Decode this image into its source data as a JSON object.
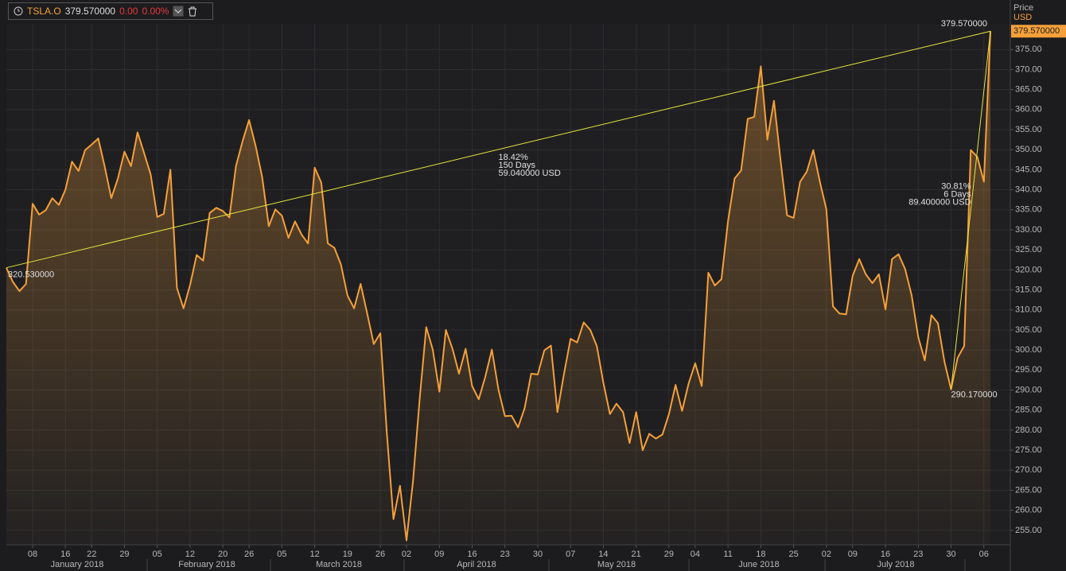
{
  "header": {
    "price": "379.570000",
    "change": "0.00",
    "change_pct": "0.00%"
  },
  "chart_data": {
    "type": "line",
    "y_axis_title": "Price",
    "y_axis_unit": "USD",
    "months": [
      "January 2018",
      "February 2018",
      "March 2018",
      "April 2018",
      "May 2018",
      "June 2018",
      "July 2018"
    ],
    "categories": [
      null,
      null,
      null,
      null,
      "08",
      null,
      null,
      null,
      null,
      "16",
      null,
      null,
      null,
      "22",
      null,
      null,
      null,
      null,
      "29",
      null,
      null,
      null,
      null,
      "05",
      null,
      null,
      null,
      null,
      "12",
      null,
      null,
      null,
      null,
      "20",
      null,
      null,
      null,
      "26",
      null,
      null,
      null,
      null,
      "05",
      null,
      null,
      null,
      null,
      "12",
      null,
      null,
      null,
      null,
      "19",
      null,
      null,
      null,
      null,
      "26",
      null,
      null,
      null,
      "02",
      null,
      null,
      null,
      null,
      "09",
      null,
      null,
      null,
      null,
      "16",
      null,
      null,
      null,
      null,
      "23",
      null,
      null,
      null,
      null,
      "30",
      null,
      null,
      null,
      null,
      "07",
      null,
      null,
      null,
      null,
      "14",
      null,
      null,
      null,
      null,
      "21",
      null,
      null,
      null,
      null,
      "29",
      null,
      null,
      null,
      "04",
      null,
      null,
      null,
      null,
      "11",
      null,
      null,
      null,
      null,
      "18",
      null,
      null,
      null,
      null,
      "25",
      null,
      null,
      null,
      null,
      "02",
      null,
      null,
      null,
      "09",
      null,
      null,
      null,
      null,
      "16",
      null,
      null,
      null,
      null,
      "23",
      null,
      null,
      null,
      null,
      "30",
      null,
      null,
      null,
      null,
      "06",
      null
    ],
    "series": [
      {
        "name": "TSLA.O",
        "color": "#f5a03a",
        "values": [
          320.5,
          317,
          314.7,
          316.5,
          336.5,
          333.8,
          334.9,
          337.9,
          336.2,
          340,
          347,
          344.7,
          349.9,
          351.3,
          352.8,
          345.7,
          337.9,
          342.8,
          349.5,
          345.9,
          354.3,
          349.1,
          343.8,
          333.2,
          334,
          345,
          315.5,
          310.4,
          316.2,
          323.7,
          322.3,
          334.2,
          335.5,
          334.7,
          333.1,
          345.9,
          352.1,
          357.4,
          350.9,
          343.1,
          330.9,
          335.1,
          333.5,
          328,
          332.1,
          328.8,
          326.6,
          345.5,
          341.8,
          326.6,
          325.5,
          321.3,
          313.6,
          310.4,
          316.5,
          309.1,
          301.5,
          304.2,
          279.2,
          257.8,
          266.1,
          252.5,
          267.5,
          287.7,
          305.7,
          300.1,
          289.6,
          305,
          300.3,
          294.1,
          300.3,
          291,
          287.7,
          293.3,
          300.1,
          290.2,
          283.5,
          283.6,
          280.7,
          285.5,
          294.1,
          293.9,
          299.9,
          301.1,
          284.5,
          294.1,
          302.8,
          301.9,
          306.9,
          305,
          301,
          291.9,
          284,
          286.6,
          284.5,
          276.8,
          284.5,
          275,
          279.1,
          277.9,
          278.9,
          284,
          291.3,
          284.8,
          291.7,
          296.7,
          291,
          319.3,
          316.1,
          317.7,
          332.1,
          342.8,
          344.8,
          357.7,
          358.2,
          370.8,
          352.5,
          362.2,
          347.5,
          333.6,
          333,
          342,
          344.5,
          349.9,
          342,
          335.1,
          310.9,
          309.1,
          308.9,
          318.5,
          322.7,
          318.9,
          316.7,
          318.9,
          310.1,
          322.7,
          323.9,
          320.2,
          313.6,
          303.2,
          297.4,
          308.7,
          306.7,
          297,
          290.2,
          298.1,
          301,
          349.9,
          348.2,
          342,
          379.57
        ]
      }
    ],
    "ylim": [
      251.4,
      381.4
    ],
    "yticks": [
      {
        "value": 255,
        "label": "255.00"
      },
      {
        "value": 260,
        "label": "260.00"
      },
      {
        "value": 265,
        "label": "265.00"
      },
      {
        "value": 270,
        "label": "270.00"
      },
      {
        "value": 275,
        "label": "275.00"
      },
      {
        "value": 280,
        "label": "280.00"
      },
      {
        "value": 285,
        "label": "285.00"
      },
      {
        "value": 290,
        "label": "290.00"
      },
      {
        "value": 295,
        "label": "295.00"
      },
      {
        "value": 300,
        "label": "300.00"
      },
      {
        "value": 305,
        "label": "305.00"
      },
      {
        "value": 310,
        "label": "310.00"
      },
      {
        "value": 315,
        "label": "315.00"
      },
      {
        "value": 320,
        "label": "320.00"
      },
      {
        "value": 325,
        "label": "325.00"
      },
      {
        "value": 330,
        "label": "330.00"
      },
      {
        "value": 335,
        "label": "335.00"
      },
      {
        "value": 340,
        "label": "340.00"
      },
      {
        "value": 345,
        "label": "345.00"
      },
      {
        "value": 350,
        "label": "350.00"
      },
      {
        "value": 355,
        "label": "355.00"
      },
      {
        "value": 360,
        "label": "360.00"
      },
      {
        "value": 365,
        "label": "365.00"
      },
      {
        "value": 370,
        "label": "370.00"
      },
      {
        "value": 375,
        "label": "375.00"
      }
    ],
    "grid": true,
    "last_price": {
      "value": 379.57,
      "label": "379.570000"
    },
    "trendlines": [
      {
        "color": "#e6e63c",
        "x_start": 0,
        "x_end": 150,
        "start_value": 320.53,
        "end_value": 379.57,
        "start_label": "320.530000",
        "end_label": "379.570000",
        "stats": [
          "18.42%",
          "150 Days",
          "59.040000 USD"
        ]
      },
      {
        "color": "#e6e63c",
        "x_start": 144,
        "x_end": 150,
        "start_value": 290.17,
        "end_value": 379.57,
        "start_label": "290.170000",
        "stats": [
          "30.81%",
          "6 Days",
          "89.400000 USD"
        ]
      }
    ]
  }
}
